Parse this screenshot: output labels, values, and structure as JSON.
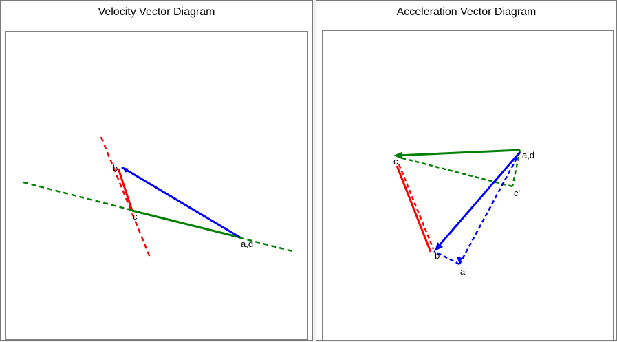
{
  "velocity": {
    "title": "Velocity Vector Diagram",
    "labels": {
      "b": "b",
      "c": "c",
      "ad": "a,d"
    }
  },
  "acceleration": {
    "title": "Acceleration Vector Diagram",
    "labels": {
      "ad": "a,d",
      "c": "c",
      "c_prime": "c'",
      "b": "b",
      "a_prime": "a'"
    }
  },
  "colors": {
    "link_ab": "#0000ff",
    "link_bc": "#ff0000",
    "link_cd": "#008000"
  }
}
